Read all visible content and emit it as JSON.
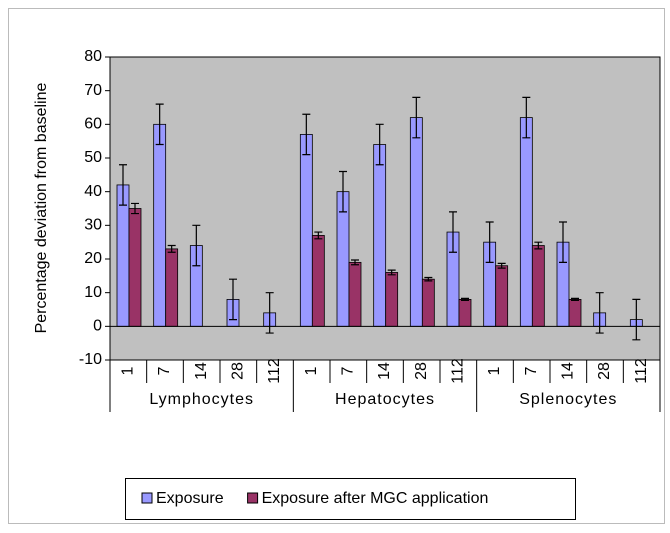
{
  "chart_data": {
    "type": "bar",
    "ylabel": "Percentage deviation  from baseline",
    "groups": [
      {
        "name": "Lymphocytes",
        "categories": [
          "1",
          "7",
          "14",
          "28",
          "112"
        ]
      },
      {
        "name": "Hepatocytes",
        "categories": [
          "1",
          "7",
          "14",
          "28",
          "112"
        ]
      },
      {
        "name": "Splenocytes",
        "categories": [
          "1",
          "7",
          "14",
          "28",
          "112"
        ]
      }
    ],
    "series": [
      {
        "name": "Exposure",
        "color": "#9999ff",
        "values": [
          42,
          60,
          24,
          8,
          4,
          57,
          40,
          54,
          62,
          28,
          25,
          62,
          25,
          4,
          2
        ],
        "errors": [
          6,
          6,
          6,
          6,
          6,
          6,
          6,
          6,
          6,
          6,
          6,
          6,
          6,
          6,
          6
        ]
      },
      {
        "name": "Exposure after MGC application",
        "color": "#993366",
        "values": [
          35,
          23,
          0,
          0,
          0,
          27,
          19,
          16,
          14,
          8,
          18,
          24,
          8,
          0,
          0
        ],
        "errors": [
          1.5,
          1,
          0,
          0,
          0,
          1,
          0.7,
          0.7,
          0.5,
          0.3,
          0.7,
          1,
          0.3,
          0,
          0
        ]
      }
    ],
    "ylim": [
      -10,
      80
    ],
    "yticks": [
      -10,
      0,
      10,
      20,
      30,
      40,
      50,
      60,
      70,
      80
    ],
    "legend": "bottom"
  }
}
